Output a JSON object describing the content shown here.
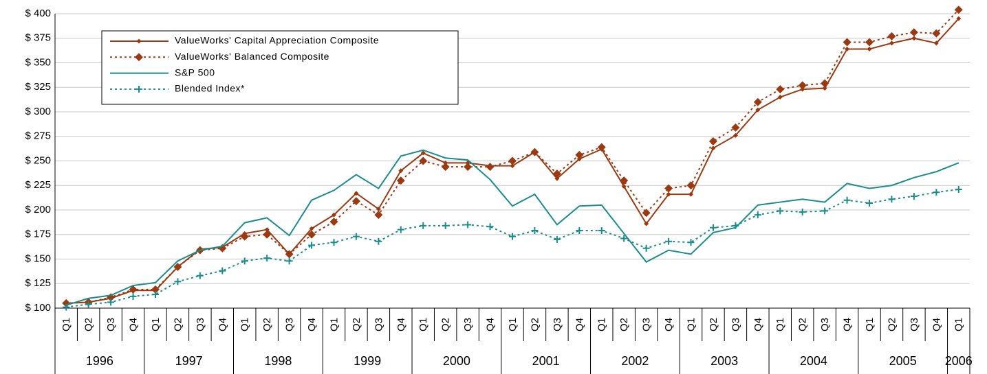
{
  "chart_data": {
    "type": "line",
    "categories": [
      "Q1",
      "Q2",
      "Q3",
      "Q4",
      "Q1",
      "Q2",
      "Q3",
      "Q4",
      "Q1",
      "Q2",
      "Q3",
      "Q4",
      "Q1",
      "Q2",
      "Q3",
      "Q4",
      "Q1",
      "Q2",
      "Q3",
      "Q4",
      "Q1",
      "Q2",
      "Q3",
      "Q4",
      "Q1",
      "Q2",
      "Q3",
      "Q4",
      "Q1",
      "Q2",
      "Q3",
      "Q4",
      "Q1",
      "Q2",
      "Q3",
      "Q4",
      "Q1",
      "Q2",
      "Q3",
      "Q4",
      "Q1"
    ],
    "years": [
      "1996",
      "1997",
      "1998",
      "1999",
      "2000",
      "2001",
      "2002",
      "2003",
      "2004",
      "2005",
      "2006"
    ],
    "series": [
      {
        "name": "ValueWorks' Capital Appreciation Composite",
        "color": "#9b3a12",
        "line_style": "solid",
        "marker": "small-diamond",
        "values": [
          105,
          106,
          110,
          118,
          118,
          142,
          160,
          162,
          176,
          180,
          155,
          181,
          195,
          217,
          201,
          240,
          258,
          248,
          248,
          245,
          245,
          259,
          232,
          252,
          262,
          224,
          186,
          216,
          216,
          263,
          276,
          302,
          315,
          323,
          324,
          364,
          364,
          370,
          375,
          370,
          395
        ]
      },
      {
        "name": "ValueWorks' Balanced Composite",
        "color": "#9b3a12",
        "line_style": "dotted",
        "marker": "diamond",
        "values": [
          105,
          106,
          111,
          119,
          119,
          142,
          159,
          161,
          173,
          175,
          155,
          175,
          188,
          209,
          195,
          230,
          250,
          244,
          244,
          244,
          250,
          259,
          237,
          256,
          264,
          230,
          197,
          222,
          225,
          270,
          284,
          310,
          323,
          327,
          329,
          371,
          371,
          377,
          381,
          380,
          404
        ]
      },
      {
        "name": "S&P 500",
        "color": "#1a8c8c",
        "line_style": "solid",
        "marker": "none",
        "values": [
          103,
          110,
          113,
          123,
          126,
          148,
          159,
          163,
          187,
          192,
          174,
          210,
          220,
          236,
          222,
          255,
          261,
          253,
          251,
          231,
          204,
          216,
          185,
          204,
          205,
          176,
          147,
          159,
          155,
          177,
          182,
          205,
          208,
          211,
          208,
          227,
          222,
          225,
          233,
          239,
          248
        ]
      },
      {
        "name": "Blended Index*",
        "color": "#1a8c8c",
        "line_style": "dotted",
        "marker": "plus",
        "values": [
          101,
          104,
          106,
          112,
          114,
          127,
          133,
          138,
          148,
          151,
          148,
          164,
          167,
          173,
          168,
          180,
          184,
          184,
          185,
          183,
          173,
          179,
          170,
          179,
          179,
          171,
          161,
          168,
          167,
          182,
          184,
          195,
          199,
          198,
          199,
          210,
          207,
          211,
          214,
          218,
          221
        ]
      }
    ],
    "ylim": [
      100,
      400
    ],
    "yticks": [
      {
        "value": 100,
        "label": "$ 100"
      },
      {
        "value": 125,
        "label": "$ 125"
      },
      {
        "value": 150,
        "label": "$ 150"
      },
      {
        "value": 175,
        "label": "$ 175"
      },
      {
        "value": 200,
        "label": "$ 200"
      },
      {
        "value": 225,
        "label": "$ 225"
      },
      {
        "value": 250,
        "label": "$ 250"
      },
      {
        "value": 275,
        "label": "$ 275"
      },
      {
        "value": 300,
        "label": "$ 300"
      },
      {
        "value": 325,
        "label": "$ 325"
      },
      {
        "value": 350,
        "label": "$ 350"
      },
      {
        "value": 375,
        "label": "$ 375"
      },
      {
        "value": 400,
        "label": "$ 400"
      }
    ],
    "grid": true,
    "legend": "upper-left"
  }
}
